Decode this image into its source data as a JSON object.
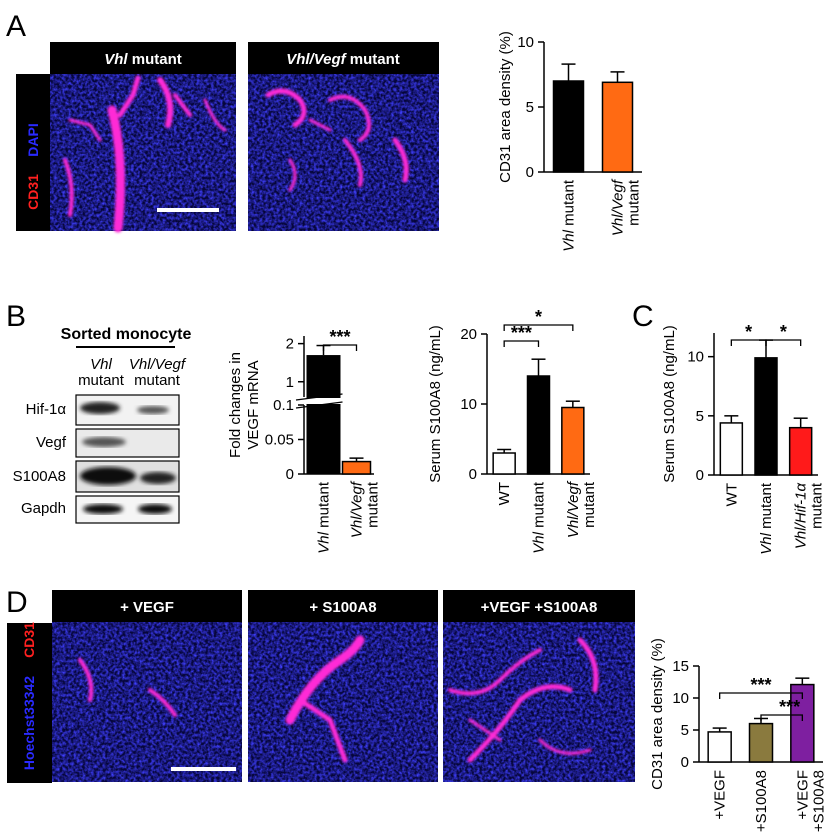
{
  "figure": {
    "panel_letters": [
      "A",
      "B",
      "C",
      "D"
    ],
    "panelA": {
      "micrograph_titles": [
        {
          "italic": "Vhl",
          "normal": " mutant"
        },
        {
          "italic": "Vhl/Vegf",
          "normal": " mutant"
        }
      ],
      "stain_labels": {
        "red": "CD31",
        "blue": "DAPI"
      }
    },
    "panelB": {
      "blot_title": "Sorted monocyte",
      "blot_columns": [
        {
          "line1": "Vhl",
          "line2": "mutant"
        },
        {
          "line1": "Vhl/Vegf",
          "line2": "mutant"
        }
      ],
      "blot_rows": [
        "Hif-1α",
        "Vegf",
        "S100A8",
        "Gapdh"
      ]
    },
    "panelD": {
      "micrograph_titles": [
        "+ VEGF",
        "+ S100A8",
        "+VEGF +S100A8"
      ],
      "stain_labels": {
        "red": "CD31",
        "blue": "Hoechst33342"
      }
    },
    "colors": {
      "black": "#000000",
      "orange": "#ff6a13",
      "red": "#ff1a1a",
      "olive": "#8a7a3e",
      "purple": "#7e1fa0",
      "white": "#ffffff",
      "tissue_blue": "#1a1acc",
      "vessel_magenta": "#ff2bd6"
    }
  },
  "chart_data": [
    {
      "id": "A",
      "type": "bar",
      "ylabel": "CD31 area density (%)",
      "ylim": [
        0,
        10
      ],
      "yticks": [
        "0",
        "5",
        "10"
      ],
      "categories": [
        {
          "italic": "Vhl",
          "normal": " mutant"
        },
        {
          "italic": "Vhl/Vegf",
          "normal": "",
          "line2": "mutant"
        }
      ],
      "values": [
        7.0,
        6.9
      ],
      "errors": [
        1.3,
        0.8
      ],
      "colors": [
        "#000000",
        "#ff6a13"
      ]
    },
    {
      "id": "B-mrna",
      "type": "bar",
      "ylabel_lines": [
        "Fold changes in",
        "VEGF mRNA"
      ],
      "axis_break": true,
      "yticks_upper": [
        "1",
        "2"
      ],
      "yticks_lower": [
        "0",
        "0.05",
        "0.1"
      ],
      "categories": [
        {
          "italic": "Vhl",
          "normal": " mutant"
        },
        {
          "italic": "Vhl/Vegf",
          "normal": "",
          "line2": "mutant"
        }
      ],
      "values": [
        1.7,
        0.018
      ],
      "errors": [
        0.25,
        0.005
      ],
      "colors": [
        "#000000",
        "#ff6a13"
      ],
      "significance": [
        {
          "from": 0,
          "to": 1,
          "label": "***"
        }
      ]
    },
    {
      "id": "B-serum",
      "type": "bar",
      "ylabel": "Serum S100A8 (ng/mL)",
      "ylim": [
        0,
        20
      ],
      "yticks": [
        "0",
        "10",
        "20"
      ],
      "categories": [
        {
          "italic": "",
          "normal": "WT"
        },
        {
          "italic": "Vhl",
          "normal": " mutant"
        },
        {
          "italic": "Vhl/Vegf",
          "normal": "",
          "line2": "mutant"
        }
      ],
      "values": [
        3.0,
        14.0,
        9.5
      ],
      "errors": [
        0.5,
        2.4,
        0.9
      ],
      "colors": [
        "#ffffff",
        "#000000",
        "#ff6a13"
      ],
      "significance": [
        {
          "from": 0,
          "to": 1,
          "label": "***"
        },
        {
          "from": 0,
          "to": 2,
          "label": "*"
        }
      ]
    },
    {
      "id": "C",
      "type": "bar",
      "ylabel": "Serum S100A8 (ng/mL)",
      "ylim": [
        0,
        12
      ],
      "yticks": [
        "0",
        "5",
        "10"
      ],
      "categories": [
        {
          "italic": "",
          "normal": "WT"
        },
        {
          "italic": "Vhl",
          "normal": " mutant"
        },
        {
          "italic": "Vhl/Hif-1α",
          "normal": "",
          "line2": "mutant"
        }
      ],
      "values": [
        4.4,
        9.9,
        4.0
      ],
      "errors": [
        0.6,
        1.5,
        0.8
      ],
      "colors": [
        "#ffffff",
        "#000000",
        "#ff1a1a"
      ],
      "significance": [
        {
          "from": 0,
          "to": 1,
          "label": "*"
        },
        {
          "from": 1,
          "to": 2,
          "label": "*"
        }
      ]
    },
    {
      "id": "D",
      "type": "bar",
      "ylabel": "CD31 area density (%)",
      "ylim": [
        0,
        15
      ],
      "yticks": [
        "0",
        "5",
        "10",
        "15"
      ],
      "categories": [
        {
          "italic": "",
          "normal": "+VEGF"
        },
        {
          "italic": "",
          "normal": "+S100A8"
        },
        {
          "italic": "",
          "normal": "+VEGF",
          "line2": "+S100A8"
        }
      ],
      "values": [
        4.7,
        6.0,
        12.1
      ],
      "errors": [
        0.6,
        0.8,
        1.0
      ],
      "colors": [
        "#ffffff",
        "#8a7a3e",
        "#7e1fa0"
      ],
      "significance": [
        {
          "from": 0,
          "to": 2,
          "label": "***"
        },
        {
          "from": 1,
          "to": 2,
          "label": "***"
        }
      ]
    }
  ]
}
